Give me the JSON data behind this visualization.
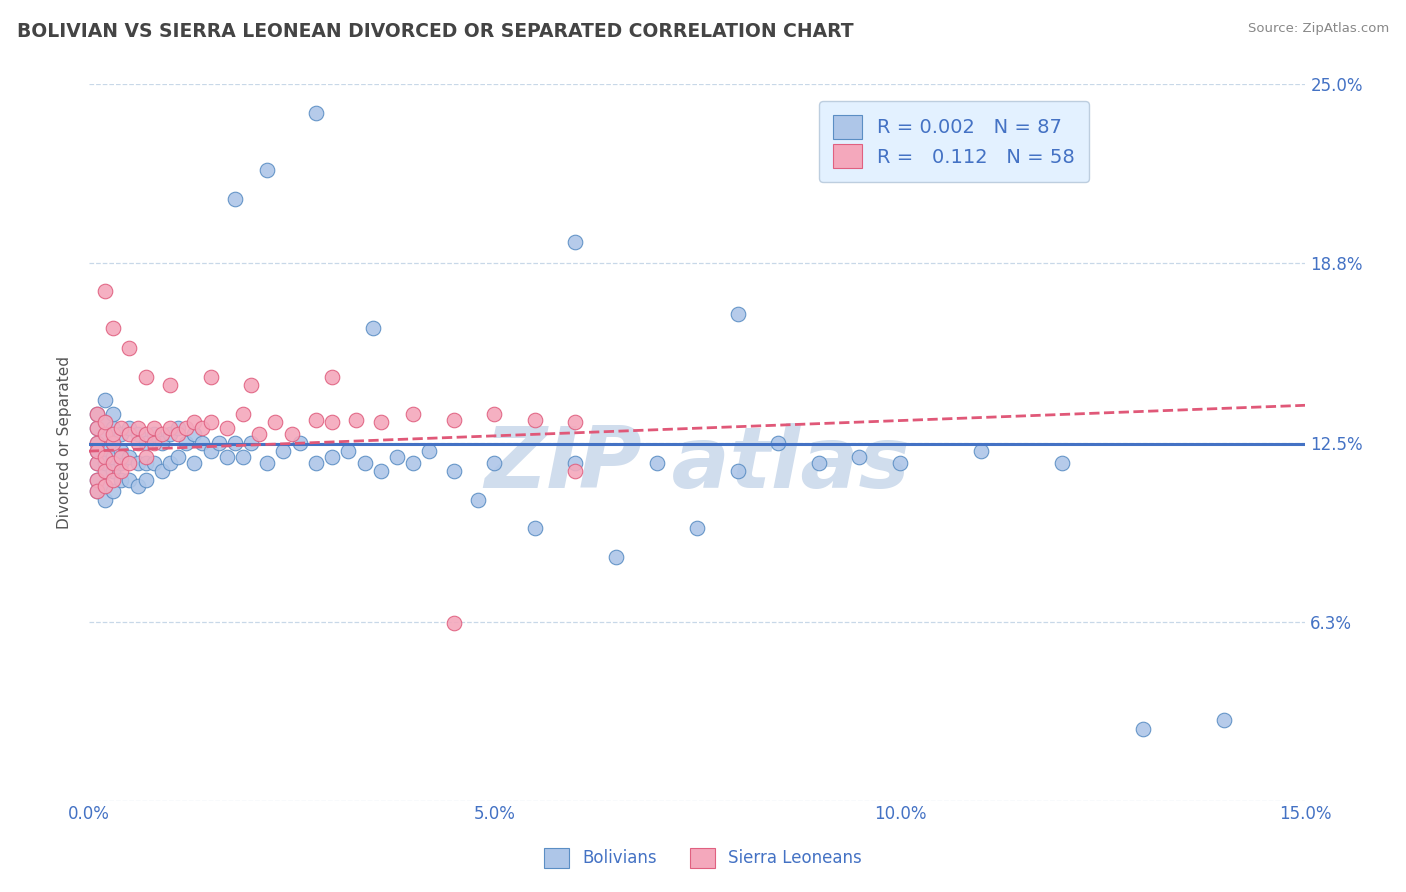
{
  "title": "BOLIVIAN VS SIERRA LEONEAN DIVORCED OR SEPARATED CORRELATION CHART",
  "source": "Source: ZipAtlas.com",
  "ylabel": "Divorced or Separated",
  "xlim": [
    0.0,
    0.15
  ],
  "ylim": [
    0.0,
    0.25
  ],
  "xticks": [
    0.0,
    0.05,
    0.1,
    0.15
  ],
  "xtick_labels": [
    "0.0%",
    "5.0%",
    "10.0%",
    "15.0%"
  ],
  "yticks": [
    0.0,
    0.0625,
    0.125,
    0.1875,
    0.25
  ],
  "ytick_labels_right": [
    "",
    "6.3%",
    "12.5%",
    "18.8%",
    "25.0%"
  ],
  "bolivian_R": 0.002,
  "bolivian_N": 87,
  "sierra_leonean_R": 0.112,
  "sierra_leonean_N": 58,
  "bolivian_color": "#aec6e8",
  "sierra_leonean_color": "#f4a8bc",
  "bolivian_edge_color": "#5b8ec4",
  "sierra_leonean_edge_color": "#e06080",
  "bolivian_line_color": "#4472c4",
  "sierra_leonean_line_color": "#e05878",
  "background_color": "#ffffff",
  "grid_color": "#c8d8e8",
  "title_color": "#444444",
  "axis_label_color": "#4472c4",
  "legend_bg_color": "#ddeeff",
  "watermark_color": "#d0dded",
  "blue_trend_y0": 0.1245,
  "blue_trend_y1": 0.1245,
  "pink_trend_y0": 0.122,
  "pink_trend_y1": 0.138,
  "bolivian_x": [
    0.001,
    0.001,
    0.001,
    0.001,
    0.001,
    0.001,
    0.001,
    0.002,
    0.002,
    0.002,
    0.002,
    0.002,
    0.002,
    0.002,
    0.002,
    0.002,
    0.003,
    0.003,
    0.003,
    0.003,
    0.003,
    0.003,
    0.004,
    0.004,
    0.004,
    0.004,
    0.005,
    0.005,
    0.005,
    0.006,
    0.006,
    0.006,
    0.007,
    0.007,
    0.007,
    0.008,
    0.008,
    0.009,
    0.009,
    0.01,
    0.01,
    0.011,
    0.011,
    0.012,
    0.013,
    0.013,
    0.014,
    0.015,
    0.016,
    0.017,
    0.018,
    0.019,
    0.02,
    0.022,
    0.024,
    0.026,
    0.028,
    0.03,
    0.032,
    0.034,
    0.036,
    0.038,
    0.04,
    0.042,
    0.045,
    0.048,
    0.05,
    0.055,
    0.06,
    0.065,
    0.07,
    0.075,
    0.08,
    0.085,
    0.09,
    0.095,
    0.1,
    0.11,
    0.12,
    0.13,
    0.14,
    0.035,
    0.022,
    0.018,
    0.028,
    0.06,
    0.08
  ],
  "bolivian_y": [
    0.125,
    0.118,
    0.112,
    0.108,
    0.13,
    0.122,
    0.135,
    0.128,
    0.12,
    0.115,
    0.11,
    0.105,
    0.132,
    0.14,
    0.122,
    0.118,
    0.125,
    0.13,
    0.115,
    0.108,
    0.12,
    0.135,
    0.128,
    0.118,
    0.112,
    0.122,
    0.13,
    0.12,
    0.112,
    0.128,
    0.118,
    0.11,
    0.125,
    0.118,
    0.112,
    0.128,
    0.118,
    0.125,
    0.115,
    0.128,
    0.118,
    0.13,
    0.12,
    0.125,
    0.128,
    0.118,
    0.125,
    0.122,
    0.125,
    0.12,
    0.125,
    0.12,
    0.125,
    0.118,
    0.122,
    0.125,
    0.118,
    0.12,
    0.122,
    0.118,
    0.115,
    0.12,
    0.118,
    0.122,
    0.115,
    0.105,
    0.118,
    0.095,
    0.118,
    0.085,
    0.118,
    0.095,
    0.115,
    0.125,
    0.118,
    0.12,
    0.118,
    0.122,
    0.118,
    0.025,
    0.028,
    0.165,
    0.22,
    0.21,
    0.24,
    0.195,
    0.17
  ],
  "sierra_leonean_x": [
    0.001,
    0.001,
    0.001,
    0.001,
    0.001,
    0.001,
    0.001,
    0.002,
    0.002,
    0.002,
    0.002,
    0.002,
    0.003,
    0.003,
    0.003,
    0.003,
    0.004,
    0.004,
    0.004,
    0.005,
    0.005,
    0.006,
    0.006,
    0.007,
    0.007,
    0.008,
    0.008,
    0.009,
    0.01,
    0.011,
    0.012,
    0.013,
    0.014,
    0.015,
    0.017,
    0.019,
    0.021,
    0.023,
    0.025,
    0.028,
    0.03,
    0.033,
    0.036,
    0.04,
    0.045,
    0.05,
    0.055,
    0.06,
    0.002,
    0.003,
    0.005,
    0.007,
    0.01,
    0.015,
    0.02,
    0.03,
    0.045,
    0.06
  ],
  "sierra_leonean_y": [
    0.125,
    0.118,
    0.13,
    0.122,
    0.112,
    0.108,
    0.135,
    0.128,
    0.12,
    0.115,
    0.11,
    0.132,
    0.125,
    0.118,
    0.128,
    0.112,
    0.13,
    0.12,
    0.115,
    0.128,
    0.118,
    0.13,
    0.125,
    0.128,
    0.12,
    0.13,
    0.125,
    0.128,
    0.13,
    0.128,
    0.13,
    0.132,
    0.13,
    0.132,
    0.13,
    0.135,
    0.128,
    0.132,
    0.128,
    0.133,
    0.132,
    0.133,
    0.132,
    0.135,
    0.133,
    0.135,
    0.133,
    0.132,
    0.178,
    0.165,
    0.158,
    0.148,
    0.145,
    0.148,
    0.145,
    0.148,
    0.062,
    0.115
  ]
}
